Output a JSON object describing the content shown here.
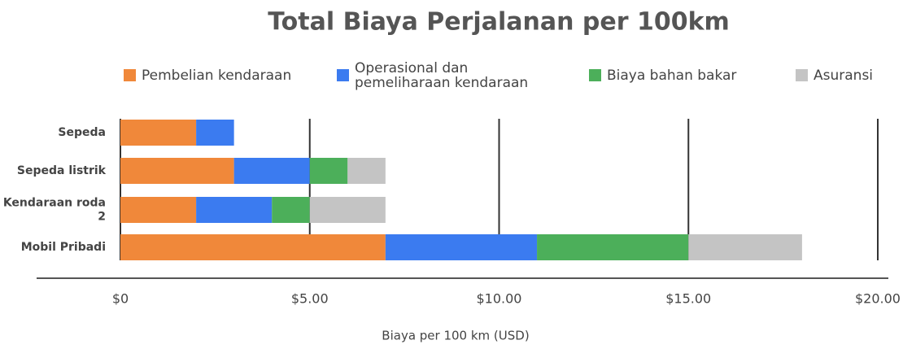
{
  "chart_data": {
    "type": "stacked-bar-horizontal",
    "title": "Total Biaya Perjalanan per 100km",
    "xlabel": "Biaya per 100 km (USD)",
    "categories": [
      "Sepeda",
      "Sepeda listrik",
      "Kendaraan roda 2",
      "Mobil Pribadi"
    ],
    "series": [
      {
        "name": "Pembelian kendaraan",
        "color": "#f0883a",
        "values": [
          2,
          3,
          2,
          7
        ]
      },
      {
        "name": "Operasional dan pemeliharaan kendaraan",
        "color": "#3b7bf0",
        "values": [
          1,
          2,
          2,
          4
        ]
      },
      {
        "name": "Biaya bahan bakar",
        "color": "#4caf5a",
        "values": [
          0,
          1,
          1,
          4
        ]
      },
      {
        "name": "Asuransi",
        "color": "#c4c4c4",
        "values": [
          0,
          1,
          2,
          3
        ]
      }
    ],
    "xlim": [
      0,
      20
    ],
    "xticks": [
      {
        "value": 0,
        "label": "$0"
      },
      {
        "value": 5,
        "label": "$5.00"
      },
      {
        "value": 10,
        "label": "$10.00"
      },
      {
        "value": 15,
        "label": "$15.00"
      },
      {
        "value": 20,
        "label": "$20.00"
      }
    ],
    "grid": true,
    "legend": "top"
  }
}
